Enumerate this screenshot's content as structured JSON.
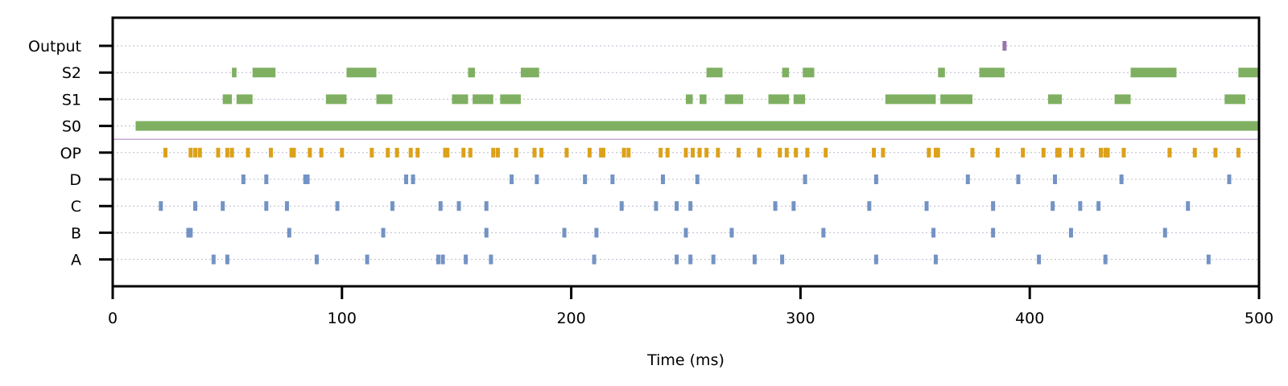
{
  "chart_data": {
    "type": "event-raster",
    "xlabel": "Time (ms)",
    "xlim": [
      0,
      500
    ],
    "xticks": [
      0,
      100,
      200,
      300,
      400,
      500
    ],
    "rows": [
      "A",
      "B",
      "C",
      "D",
      "OP",
      "S0",
      "S1",
      "S2",
      "Output"
    ],
    "colors": {
      "input": "#7393c4",
      "op": "#dca11a",
      "state": "#7fb062",
      "output": "#9a74b0",
      "separator": "#b08cc8",
      "grid": "#b9b9cf"
    },
    "series": [
      {
        "name": "A",
        "kind": "input",
        "events": [
          44,
          50,
          89,
          111,
          142,
          144,
          154,
          165,
          210,
          246,
          252,
          262,
          280,
          292,
          333,
          359,
          404,
          433,
          478
        ]
      },
      {
        "name": "B",
        "kind": "input",
        "events": [
          33,
          34,
          77,
          118,
          163,
          197,
          211,
          250,
          270,
          310,
          358,
          384,
          418,
          459
        ]
      },
      {
        "name": "C",
        "kind": "input",
        "events": [
          21,
          36,
          48,
          67,
          76,
          98,
          122,
          143,
          151,
          163,
          222,
          237,
          246,
          252,
          289,
          297,
          330,
          355,
          384,
          410,
          422,
          430,
          469
        ]
      },
      {
        "name": "D",
        "kind": "input",
        "events": [
          57,
          67,
          84,
          85,
          128,
          131,
          174,
          185,
          206,
          218,
          240,
          255,
          302,
          333,
          373,
          395,
          411,
          440,
          487
        ]
      },
      {
        "name": "OP",
        "kind": "op",
        "events": [
          23,
          34,
          36,
          38,
          46,
          50,
          52,
          59,
          69,
          78,
          79,
          86,
          91,
          100,
          113,
          120,
          124,
          130,
          133,
          145,
          146,
          153,
          156,
          166,
          168,
          176,
          184,
          187,
          198,
          208,
          213,
          214,
          223,
          225,
          239,
          242,
          250,
          253,
          256,
          259,
          264,
          273,
          282,
          291,
          294,
          298,
          303,
          311,
          332,
          336,
          356,
          359,
          360,
          375,
          386,
          397,
          406,
          412,
          413,
          418,
          423,
          431,
          433,
          434,
          441,
          461,
          472,
          481,
          491
        ]
      },
      {
        "name": "S0",
        "kind": "state",
        "intervals": [
          [
            10,
            500
          ]
        ]
      },
      {
        "name": "S1",
        "kind": "state",
        "intervals": [
          [
            48,
            52
          ],
          [
            54,
            61
          ],
          [
            93,
            102
          ],
          [
            115,
            122
          ],
          [
            148,
            155
          ],
          [
            157,
            166
          ],
          [
            169,
            178
          ],
          [
            250,
            253
          ],
          [
            256,
            259
          ],
          [
            267,
            275
          ],
          [
            286,
            295
          ],
          [
            297,
            302
          ],
          [
            337,
            359
          ],
          [
            361,
            375
          ],
          [
            408,
            414
          ],
          [
            437,
            444
          ],
          [
            485,
            494
          ]
        ]
      },
      {
        "name": "S2",
        "kind": "state",
        "intervals": [
          [
            52,
            54
          ],
          [
            61,
            71
          ],
          [
            102,
            115
          ],
          [
            155,
            158
          ],
          [
            178,
            186
          ],
          [
            259,
            266
          ],
          [
            292,
            295
          ],
          [
            301,
            306
          ],
          [
            360,
            363
          ],
          [
            378,
            389
          ],
          [
            444,
            464
          ],
          [
            491,
            500
          ]
        ]
      },
      {
        "name": "Output",
        "kind": "output",
        "events": [
          389
        ]
      }
    ]
  }
}
